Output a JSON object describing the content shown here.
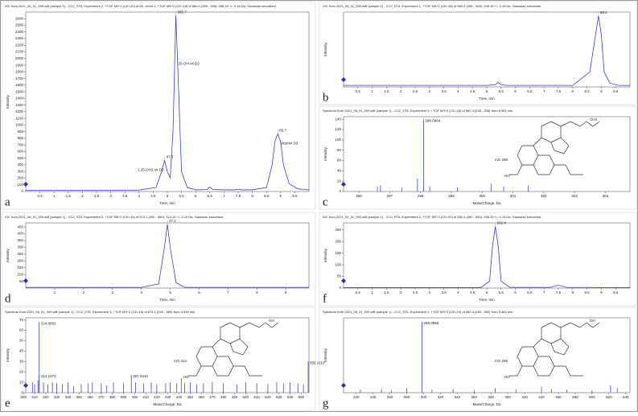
{
  "chart_data": [
    {
      "type": "line",
      "panel": "a",
      "title": "XIC from 2021_06_01_009.wiff (sample 1) - CC2_ST6, Experiment 2, +TOF MS^2 (CE=20) of 55...ment 1, +TOF MS^2 (CE=18) of 560.4 (295 - 305): 298.15 +/- 0.15 Da, Gaussian smoothed",
      "xlabel": "Time, min",
      "ylabel": "Intensity",
      "color": "#3b3bd1",
      "x": [
        0,
        1,
        2,
        3,
        4,
        4.6,
        4.8,
        4.9,
        5.0,
        5.1,
        5.2,
        5.3,
        5.4,
        5.5,
        5.7,
        6.0,
        6.4,
        6.5,
        6.6,
        7.0,
        7.4,
        7.5,
        7.6,
        8.0,
        8.5,
        8.7,
        8.8,
        8.9,
        9.0,
        9.1,
        9.3,
        9.6,
        10
      ],
      "values": [
        20,
        20,
        20,
        20,
        22,
        60,
        300,
        470,
        300,
        200,
        900,
        2650,
        1500,
        300,
        60,
        25,
        30,
        70,
        30,
        25,
        25,
        35,
        25,
        25,
        60,
        400,
        750,
        870,
        750,
        400,
        120,
        40,
        25
      ],
      "xlim": [
        0,
        10
      ],
      "ylim": [
        0,
        2700
      ],
      "xticks": [
        0.5,
        1.0,
        1.5,
        2.0,
        2.5,
        3.0,
        3.5,
        4.0,
        4.5,
        5.0,
        5.5,
        6.0,
        6.5,
        7.0,
        7.5,
        8.0,
        8.5,
        9.0,
        9.5
      ],
      "yticks": [
        0,
        100,
        200,
        300,
        400,
        500,
        600,
        700,
        800,
        900,
        1000,
        1100,
        1200,
        1300,
        1400,
        1500,
        1600,
        1700,
        1800,
        1900,
        2000,
        2100,
        2200,
        2300,
        2400,
        2500,
        2600
      ],
      "peaks": [
        {
          "x": 4.9,
          "y": 470,
          "label": "47.3",
          "name": "1,25-OH2-vit D3"
        },
        {
          "x": 5.3,
          "y": 2650,
          "label": "265.7",
          "name": "25-OH-vit D3"
        },
        {
          "x": 8.9,
          "y": 870,
          "label": "85.7",
          "name": "Vitamin D3"
        }
      ]
    },
    {
      "type": "line",
      "panel": "b",
      "title": "XIC from 2021_06_01_009.wiff (sample 1) - CC2_ST6, Experiment 1, +TOF MS^2 (CE=18) of 560.4 (295 - 305): 298.15 +/- 0.15 Da, Gaussian smoothed",
      "xlabel": "Time, min",
      "ylabel": "Intensity",
      "color": "#3b3bd1",
      "x": [
        0,
        5,
        5.3,
        5.4,
        5.5,
        5.7,
        6,
        8,
        8.6,
        8.8,
        8.9,
        9.0,
        9.1,
        9.3,
        9.6,
        10
      ],
      "values": [
        2,
        2,
        3,
        6,
        3,
        2,
        2,
        2,
        20,
        70,
        95,
        70,
        20,
        5,
        2,
        2
      ],
      "xlim": [
        0,
        10
      ],
      "ylim": [
        0,
        100
      ],
      "xticks": [
        0.5,
        1.0,
        1.5,
        2.0,
        2.5,
        3.0,
        3.5,
        4.0,
        4.5,
        5.0,
        5.5,
        6.0,
        6.5,
        7.0,
        7.5,
        8.0,
        8.5,
        9.0,
        9.5
      ],
      "peaks": [
        {
          "x": 8.9,
          "y": 95,
          "label": "85.4"
        }
      ]
    },
    {
      "type": "stem",
      "panel": "c",
      "title": "Spectrum from 2021_06_01_009.wiff (sample 1) - CC2_ST6, Experiment 1, +TOF MS^2 (CE=18) of 560.4 (295 - 305) from 8.961 min",
      "xlabel": "Mass/Charge, Da",
      "ylabel": "Intensity",
      "color": "#2a2ad0",
      "x": [
        296.6,
        296.7,
        297.4,
        297.9,
        298.0964,
        298.3,
        299.2,
        300.3,
        300.7,
        301.5
      ],
      "values": [
        10,
        12,
        8,
        25,
        140,
        10,
        8,
        15,
        10,
        12
      ],
      "value_labels": [
        null,
        null,
        null,
        null,
        "298.0964",
        null,
        null,
        null,
        null,
        null
      ],
      "xlim": [
        295.5,
        304.8
      ],
      "ylim": [
        0,
        145
      ],
      "xticks": [
        296,
        297,
        298,
        299,
        300,
        301,
        302,
        303,
        304
      ],
      "yticks": [
        0,
        20,
        40,
        60,
        80,
        100,
        120,
        140
      ],
      "structure_labels": [
        "m/z 298",
        "HO",
        "CH3"
      ]
    },
    {
      "type": "line",
      "panel": "d",
      "title": "XIC from 2021_06_01_009.wiff (sample 1) - CC2_ST6, Experiment 3, +TOF MS^2 (CE=15) of 574.1 (290 - 580): 314.15 +/- 0.15 Da, Gaussian smoothed",
      "xlabel": "Time, min",
      "ylabel": "Intensity",
      "color": "#3b3bd1",
      "x": [
        0,
        4,
        4.6,
        4.8,
        4.9,
        5.0,
        5.2,
        5.5,
        9.8
      ],
      "values": [
        5,
        5,
        30,
        300,
        470,
        300,
        40,
        5,
        5
      ],
      "xlim": [
        0,
        9.8
      ],
      "ylim": [
        0,
        480
      ],
      "xticks": [
        1,
        2,
        3,
        4,
        5,
        6,
        7,
        8,
        9
      ],
      "yticks": [
        50,
        100,
        150,
        200,
        250,
        300,
        350,
        400,
        450
      ],
      "peaks": [
        {
          "x": 4.9,
          "y": 470,
          "label": "47.2"
        }
      ]
    },
    {
      "type": "stem",
      "panel": "e",
      "title": "Spectrum from 2021_06_01_009.wiff (sample 1) - CC2_ST6, Experiment 3, +TOF MS^2 (CE=15) of 574.1 (290 - 580) from 4.939 min",
      "xlabel": "Mass/Charge, Da",
      "ylabel": "Intensity",
      "color": "#2a2ad0",
      "x": [
        308,
        310,
        313,
        314.0892,
        314.1071,
        318,
        322,
        326,
        330,
        335,
        340,
        345,
        352,
        358,
        362,
        370,
        375,
        381,
        390,
        397.034,
        401,
        408,
        415,
        420,
        428,
        432,
        438,
        442,
        445,
        450,
        456,
        462,
        470,
        480,
        492,
        500,
        510,
        520,
        528,
        534,
        540,
        547,
        552,
        556.311
      ],
      "values": [
        10,
        8,
        12,
        68,
        17,
        10,
        8,
        10,
        9,
        8,
        10,
        6,
        8,
        9,
        10,
        9,
        7,
        10,
        9,
        17,
        10,
        9,
        10,
        8,
        9,
        10,
        9,
        14,
        9,
        10,
        8,
        9,
        10,
        9,
        8,
        10,
        9,
        8,
        10,
        9,
        10,
        9,
        8,
        30
      ],
      "value_labels": [
        null,
        null,
        null,
        "314.0892",
        "314.1071",
        null,
        null,
        null,
        null,
        null,
        null,
        null,
        null,
        null,
        null,
        null,
        null,
        null,
        null,
        "397.0340",
        null,
        null,
        null,
        null,
        null,
        null,
        null,
        null,
        null,
        null,
        null,
        null,
        null,
        null,
        null,
        null,
        null,
        null,
        null,
        null,
        null,
        null,
        null,
        "556.3110"
      ],
      "xlim": [
        302,
        557
      ],
      "ylim": [
        0,
        72
      ],
      "xticks": [
        300,
        310,
        320,
        330,
        340,
        350,
        360,
        370,
        380,
        390,
        400,
        410,
        420,
        430,
        440,
        450,
        460,
        470,
        480,
        490,
        500,
        510,
        520,
        530,
        540,
        550
      ],
      "yticks": [
        0,
        10,
        20,
        30,
        40,
        50,
        60,
        70
      ],
      "structure_labels": [
        "m/z 314",
        "HO",
        "OH"
      ]
    },
    {
      "type": "line",
      "panel": "f",
      "title": "XIC from 2021_06_01_009.wiff (sample 1) - CC2_ST6, Experiment 2, +TOF MS^2 (CE=20) of 550.4 (280 - 550): 298.15 +/- 0.15 Da, Gaussian smoothed",
      "xlabel": "Time, min",
      "ylabel": "Intensity",
      "color": "#3b3bd1",
      "x": [
        0,
        4.8,
        5.1,
        5.2,
        5.3,
        5.4,
        5.5,
        5.8,
        7.2,
        7.5,
        7.8,
        10
      ],
      "values": [
        2,
        2,
        30,
        180,
        265,
        180,
        30,
        3,
        3,
        12,
        3,
        2
      ],
      "xlim": [
        0,
        10
      ],
      "ylim": [
        0,
        280
      ],
      "xticks": [
        0.5,
        1.0,
        1.5,
        2.0,
        2.5,
        3.0,
        3.5,
        4.0,
        4.5,
        5.0,
        5.5,
        6.0,
        6.5,
        7.0,
        7.5,
        8.0,
        8.5,
        9.0,
        9.5
      ],
      "yticks": [
        0,
        50,
        100,
        150,
        200,
        250
      ],
      "peaks": [
        {
          "x": 5.3,
          "y": 265,
          "label": "262.4"
        }
      ]
    },
    {
      "type": "stem",
      "panel": "g",
      "title": "Spectrum from 2021_06_01_009.wiff (sample 1) - CC2_ST6, Experiment 2, +TOF MS^2 (CE=20) of 550.4 (280 - 550) from 5.462 min",
      "xlabel": "Mass/Charge, Da",
      "ylabel": "Intensity",
      "color": "#2a2ad0",
      "x": [
        225,
        250,
        262,
        280,
        298.0955,
        310,
        335,
        360,
        385,
        410,
        440,
        452,
        470,
        500,
        522,
        530
      ],
      "values": [
        4,
        5,
        3,
        6,
        95,
        4,
        5,
        3,
        6,
        4,
        8,
        5,
        4,
        3,
        10,
        6
      ],
      "value_labels": [
        null,
        null,
        null,
        null,
        "298.0955",
        null,
        null,
        null,
        null,
        null,
        null,
        null,
        null,
        null,
        null,
        null
      ],
      "xlim": [
        205,
        545
      ],
      "ylim": [
        0,
        100
      ],
      "xticks": [
        220,
        240,
        260,
        280,
        300,
        320,
        340,
        360,
        380,
        400,
        420,
        440,
        460,
        480,
        500,
        520,
        540
      ],
      "structure_labels": [
        "m/z 298",
        "HO",
        "OH"
      ]
    }
  ]
}
